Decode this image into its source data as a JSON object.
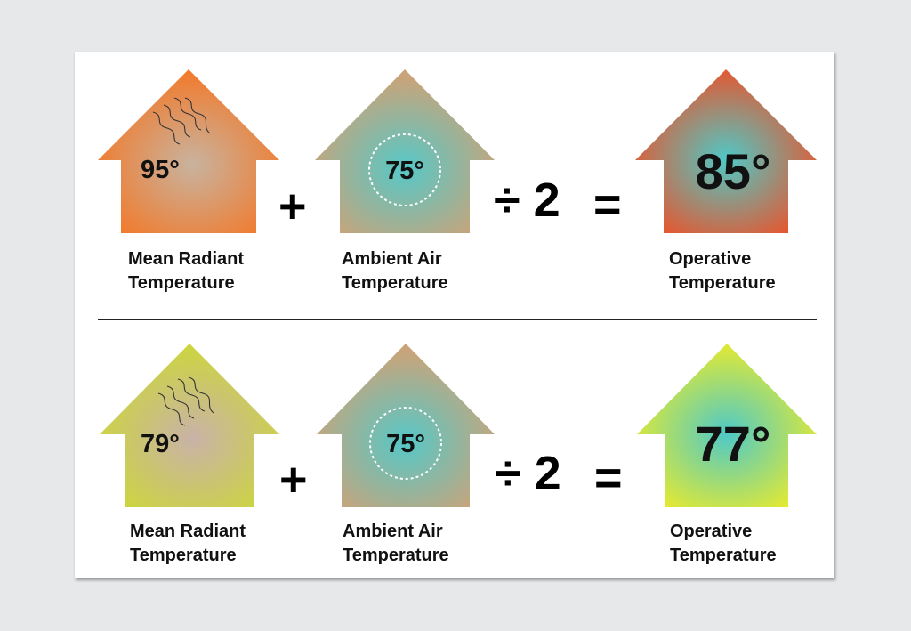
{
  "rows": [
    {
      "mean_radiant": {
        "value": "95°",
        "line1": "Mean Radiant",
        "line2": "Temperature",
        "edge": "#f2792a",
        "center": "#c8b39f"
      },
      "ambient_air": {
        "value": "75°",
        "line1": "Ambient Air",
        "line2": "Temperature",
        "edge": "#c9a47a",
        "center": "#55c8c8"
      },
      "operative": {
        "value": "85°",
        "line1": "Operative",
        "line2": "Temperature",
        "edge": "#f04e24",
        "center": "#4ec9c7"
      }
    },
    {
      "mean_radiant": {
        "value": "79°",
        "line1": "Mean Radiant",
        "line2": "Temperature",
        "edge": "#ccd63c",
        "center": "#c9b2a8"
      },
      "ambient_air": {
        "value": "75°",
        "line1": "Ambient Air",
        "line2": "Temperature",
        "edge": "#c9a47a",
        "center": "#55c8c8"
      },
      "operative": {
        "value": "77°",
        "line1": "Operative",
        "line2": "Temperature",
        "edge": "#f0ec26",
        "center": "#4ec9c7"
      }
    }
  ],
  "operators": {
    "plus": "+",
    "divide": "÷ 2",
    "equals": "="
  }
}
